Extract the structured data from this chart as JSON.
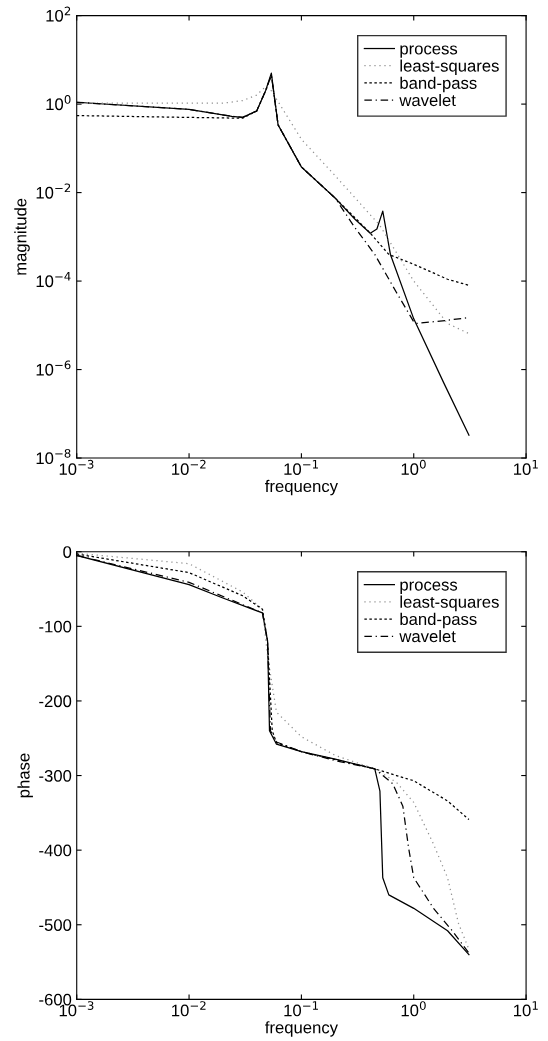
{
  "chart_data": [
    {
      "type": "line",
      "xlabel": "frequency",
      "ylabel": "magnitude",
      "log": "xy",
      "xlim": [
        0.001,
        10
      ],
      "ylim": [
        1e-08,
        100
      ],
      "xticks": [
        {
          "value": 0.001,
          "label": "10$^{−3}$"
        },
        {
          "value": 0.01,
          "label": "10$^{−2}$"
        },
        {
          "value": 0.1,
          "label": "10$^{−1}$"
        },
        {
          "value": 1,
          "label": "10$^{0}$"
        },
        {
          "value": 10,
          "label": "10$^{1}$"
        }
      ],
      "yticks": [
        {
          "value": 1e-08,
          "label": "10$^{−8}$"
        },
        {
          "value": 1e-06,
          "label": "10$^{−6}$"
        },
        {
          "value": 0.0001,
          "label": "10$^{−4}$"
        },
        {
          "value": 0.01,
          "label": "10$^{−2}$"
        },
        {
          "value": 1,
          "label": "10$^{0}$"
        },
        {
          "value": 100,
          "label": "10$^{2}$"
        }
      ],
      "grid": false,
      "legend": "top right",
      "series": [
        {
          "name": "process",
          "color": "#000000",
          "line_style": "solid",
          "x": [
            0.001,
            0.01,
            0.024,
            0.03,
            0.04,
            0.048,
            0.054,
            0.062,
            0.1,
            0.2,
            0.3,
            0.41,
            0.47,
            0.53,
            0.62,
            1.0,
            1.85,
            3.1
          ],
          "values": [
            1.1,
            0.76,
            0.53,
            0.5,
            0.7,
            2,
            5,
            0.34,
            0.038,
            0.0075,
            0.0025,
            0.0012,
            0.0015,
            0.0038,
            0.0004,
            1.4e-05,
            5e-07,
            3.3e-08
          ]
        },
        {
          "name": "least-squares",
          "color": "#909090",
          "line_style": "dotted",
          "x": [
            0.001,
            0.01,
            0.02,
            0.03,
            0.04,
            0.048,
            0.054,
            0.1,
            0.2,
            0.5,
            1.0,
            2.0,
            3.1
          ],
          "values": [
            1.05,
            1.05,
            1.05,
            1.2,
            1.6,
            2.5,
            2,
            0.16,
            0.024,
            0.0018,
            0.0001,
            1.1e-05,
            6.5e-06
          ]
        },
        {
          "name": "band-pass",
          "color": "#000000",
          "line_style": "dashed",
          "x": [
            0.001,
            0.01,
            0.03,
            0.04,
            0.048,
            0.054,
            0.062,
            0.1,
            0.2,
            0.4,
            0.6,
            1.0,
            2.0,
            3.1
          ],
          "values": [
            0.55,
            0.5,
            0.48,
            0.7,
            2,
            4.5,
            0.34,
            0.038,
            0.0075,
            0.0013,
            0.0004,
            0.00024,
            0.00011,
            8e-05
          ]
        },
        {
          "name": "wavelet",
          "color": "#000000",
          "line_style": "dashdot",
          "x": [
            0.001,
            0.01,
            0.024,
            0.03,
            0.04,
            0.048,
            0.054,
            0.062,
            0.1,
            0.2,
            0.3,
            0.45,
            0.7,
            1.0,
            1.05,
            2.0,
            3.1
          ],
          "values": [
            1.1,
            0.76,
            0.53,
            0.5,
            0.7,
            2,
            4.5,
            0.34,
            0.038,
            0.0075,
            0.0016,
            0.0004,
            5.6e-05,
            1.2e-05,
            1.1e-05,
            1.3e-05,
            1.5e-05
          ]
        }
      ]
    },
    {
      "type": "line",
      "xlabel": "frequency",
      "ylabel": "phase",
      "log": "x",
      "xlim": [
        0.001,
        10
      ],
      "ylim": [
        -600,
        0
      ],
      "xticks": [
        {
          "value": 0.001,
          "label": "10$^{−3}$"
        },
        {
          "value": 0.01,
          "label": "10$^{−2}$"
        },
        {
          "value": 0.1,
          "label": "10$^{−1}$"
        },
        {
          "value": 1,
          "label": "10$^{0}$"
        },
        {
          "value": 10,
          "label": "10$^{1}$"
        }
      ],
      "yticks": [
        -600,
        -500,
        -400,
        -300,
        -200,
        -100,
        0
      ],
      "grid": false,
      "legend": "top right",
      "series": [
        {
          "name": "process",
          "color": "#000000",
          "line_style": "solid",
          "x": [
            0.001,
            0.01,
            0.02,
            0.045,
            0.05,
            0.052,
            0.06,
            0.1,
            0.2,
            0.45,
            0.5,
            0.53,
            0.6,
            1.0,
            2.0,
            3.1
          ],
          "values": [
            -5,
            -44,
            -62,
            -82,
            -120,
            -240,
            -258,
            -268,
            -278,
            -291,
            -321,
            -437,
            -460,
            -478,
            -508,
            -540
          ]
        },
        {
          "name": "least-squares",
          "color": "#909090",
          "line_style": "dotted",
          "x": [
            0.001,
            0.01,
            0.03,
            0.045,
            0.05,
            0.06,
            0.1,
            0.2,
            0.45,
            0.7,
            1.0,
            1.5,
            2.0,
            2.5,
            3.1
          ],
          "values": [
            -2,
            -16,
            -54,
            -77,
            -140,
            -215,
            -248,
            -273,
            -291,
            -309,
            -336,
            -392,
            -437,
            -498,
            -533
          ]
        },
        {
          "name": "band-pass",
          "color": "#000000",
          "line_style": "dashed",
          "x": [
            0.001,
            0.01,
            0.03,
            0.045,
            0.05,
            0.055,
            0.06,
            0.1,
            0.45,
            0.7,
            1.0,
            2.0,
            3.1
          ],
          "values": [
            -3,
            -28,
            -59,
            -77,
            -120,
            -240,
            -256,
            -268,
            -291,
            -300,
            -307,
            -334,
            -359
          ]
        },
        {
          "name": "wavelet",
          "color": "#000000",
          "line_style": "dashdot",
          "x": [
            0.001,
            0.01,
            0.045,
            0.05,
            0.053,
            0.06,
            0.1,
            0.2,
            0.45,
            0.65,
            0.8,
            0.9,
            1.0,
            1.5,
            2.2,
            3.1
          ],
          "values": [
            -5,
            -41,
            -82,
            -120,
            -240,
            -255,
            -268,
            -280,
            -291,
            -311,
            -341,
            -397,
            -437,
            -478,
            -508,
            -538
          ]
        }
      ]
    }
  ]
}
